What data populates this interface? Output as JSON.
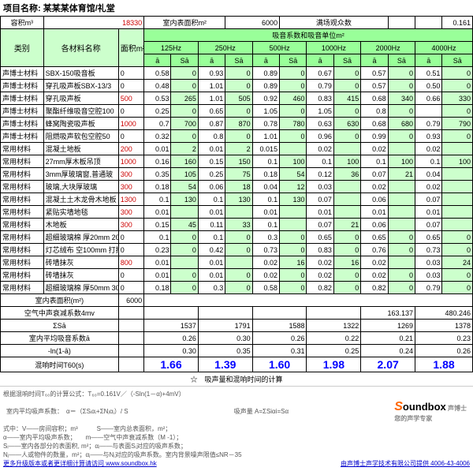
{
  "title": "项目名称: 某某某体育馆/礼堂",
  "top": {
    "volLabel": "容积m³",
    "vol": "18330",
    "areaLabel": "室内表面积m²",
    "area": "6000",
    "seatLabel": "满场观众数",
    "const": "0.161"
  },
  "hdr": {
    "cat": "类别",
    "mat": "各材料名称",
    "faceArea": "面积m²",
    "coeff": "吸音系数和吸音单位m²",
    "freqs": [
      "125Hz",
      "250Hz",
      "500Hz",
      "1000Hz",
      "2000Hz",
      "4000Hz"
    ],
    "sub1": "ā",
    "sub2": "Sā"
  },
  "rows": [
    {
      "c": "声博士材料",
      "m": "SBX-150吸音板",
      "a": "0",
      "v": [
        "0.58",
        "0",
        "0.93",
        "0",
        "0.89",
        "0",
        "0.67",
        "0",
        "0.57",
        "0",
        "0.51",
        "0"
      ]
    },
    {
      "c": "声博士材料",
      "m": "穿孔吸声板SBX-13/3",
      "a": "0",
      "v": [
        "0.48",
        "0",
        "1.01",
        "0",
        "0.89",
        "0",
        "0.79",
        "0",
        "0.57",
        "0",
        "0.50",
        "0"
      ]
    },
    {
      "c": "声博士材料",
      "m": "穿孔吸声板",
      "a": "500",
      "ar": 1,
      "v": [
        "0.53",
        "265",
        "1.01",
        "505",
        "0.92",
        "460",
        "0.83",
        "415",
        "0.68",
        "340",
        "0.66",
        "330"
      ]
    },
    {
      "c": "声博士材料",
      "m": "聚酯纤维吸音空腔100",
      "a": "0",
      "v": [
        "0.25",
        "0",
        "0.65",
        "0",
        "1.05",
        "0",
        "1.05",
        "0",
        "0.8",
        "0",
        "",
        "0"
      ]
    },
    {
      "c": "声博士材料",
      "m": "蜂窝陶瓷吸声板",
      "a": "1000",
      "ar": 1,
      "v": [
        "0.7",
        "700",
        "0.87",
        "870",
        "0.78",
        "780",
        "0.63",
        "630",
        "0.68",
        "680",
        "0.79",
        "790"
      ]
    },
    {
      "c": "声博士材料",
      "m": "阻燃吸声软包空腔50",
      "a": "0",
      "v": [
        "0.32",
        "0",
        "0.8",
        "0",
        "1.01",
        "0",
        "0.96",
        "0",
        "0.99",
        "0",
        "0.93",
        "0"
      ]
    },
    {
      "常用材料": "",
      "c": "常用材料",
      "m": "混凝土地板",
      "a": "200",
      "ar": 1,
      "v": [
        "0.01",
        "2",
        "0.01",
        "2",
        "0.015",
        "",
        "0.02",
        "",
        "0.02",
        "",
        "0.02",
        ""
      ]
    },
    {
      "c": "常用材料",
      "m": "27mm厚木板吊顶",
      "a": "1000",
      "ar": 1,
      "v": [
        "0.16",
        "160",
        "0.15",
        "150",
        "0.1",
        "100",
        "0.1",
        "100",
        "0.1",
        "100",
        "0.1",
        "100"
      ]
    },
    {
      "c": "常用材料",
      "m": "3mm厚玻璃窗,普通玻",
      "a": "300",
      "ar": 1,
      "v": [
        "0.35",
        "105",
        "0.25",
        "75",
        "0.18",
        "54",
        "0.12",
        "36",
        "0.07",
        "21",
        "0.04",
        ""
      ]
    },
    {
      "c": "常用材料",
      "m": "玻璃,大块厚玻璃",
      "a": "300",
      "ar": 1,
      "v": [
        "0.18",
        "54",
        "0.06",
        "18",
        "0.04",
        "12",
        "0.03",
        "",
        "0.02",
        "",
        "0.02",
        ""
      ]
    },
    {
      "c": "常用材料",
      "m": "混凝土土木龙骨木地板",
      "a": "1300",
      "ar": 1,
      "v": [
        "0.1",
        "130",
        "0.1",
        "130",
        "0.1",
        "130",
        "0.07",
        "",
        "0.06",
        "",
        "0.07",
        ""
      ]
    },
    {
      "c": "常用材料",
      "m": "紧贴实墙地毯",
      "a": "300",
      "ar": 1,
      "v": [
        "0.01",
        "",
        "0.01",
        "",
        "0.01",
        "",
        "0.01",
        "",
        "0.01",
        "",
        "0.01",
        ""
      ]
    },
    {
      "c": "常用材料",
      "m": "木地板",
      "a": "300",
      "ar": 1,
      "v": [
        "0.15",
        "45",
        "0.11",
        "33",
        "0.1",
        "",
        "0.07",
        "21",
        "0.06",
        "",
        "0.07",
        ""
      ]
    },
    {
      "c": "常用材料",
      "m": "超细玻璃棉 厚20mm 20K",
      "a": "0",
      "v": [
        "0.1",
        "0",
        "0.1",
        "0",
        "0.3",
        "0",
        "0.65",
        "0",
        "0.65",
        "0",
        "0.65",
        "0"
      ]
    },
    {
      "c": "常用材料",
      "m": "灯芯绒布 空100mm 打折",
      "a": "0",
      "v": [
        "0.23",
        "0",
        "0.42",
        "0",
        "0.73",
        "0",
        "0.83",
        "0",
        "0.76",
        "0",
        "0.73",
        "0"
      ]
    },
    {
      "c": "常用材料",
      "m": "砖墙抹灰",
      "a": "800",
      "ar": 1,
      "v": [
        "0.01",
        "",
        "0.01",
        "",
        "0.02",
        "16",
        "0.02",
        "16",
        "0.02",
        "",
        "0.03",
        "24"
      ]
    },
    {
      "c": "常用材料",
      "m": "砖墙抹灰",
      "a": "0",
      "v": [
        "0.01",
        "0",
        "0.01",
        "0",
        "0.02",
        "0",
        "0.02",
        "0",
        "0.02",
        "0",
        "0.03",
        "0"
      ]
    },
    {
      "c": "常用材料",
      "m": "超细玻璃棉 厚50mm 30K",
      "a": "0",
      "v": [
        "0.18",
        "0",
        "0.3",
        "0",
        "0.58",
        "0",
        "0.82",
        "0",
        "0.82",
        "0",
        "0.79",
        "0"
      ]
    }
  ],
  "sum": {
    "areaRow": {
      "l": "室内表面积(m²)",
      "v": "6000"
    },
    "airRow": {
      "l": "空气中声衰减系数4mv",
      "vals": [
        "",
        "",
        "",
        "",
        "163.137",
        "480.246"
      ]
    },
    "sigma": {
      "l": "ΣSā",
      "vals": [
        "1537",
        "1791",
        "1588",
        "1322",
        "1269",
        "1378"
      ]
    },
    "avg": {
      "l": "室内平均吸音系数ā",
      "vals": [
        "0.26",
        "0.30",
        "0.26",
        "0.22",
        "0.21",
        "0.23"
      ]
    },
    "ln": {
      "l": "-ln(1-ā)",
      "vals": [
        "0.30",
        "0.35",
        "0.31",
        "0.25",
        "0.24",
        "0.26"
      ]
    },
    "t60": {
      "l": "混响时间T60(s)",
      "vals": [
        "1.66",
        "1.39",
        "1.60",
        "1.98",
        "2.07",
        "1.88"
      ]
    }
  },
  "footer": {
    "divider": "☆　吸声量和混响时间的计算",
    "line1": "根据混响时间T₆₀的计算公式：T₆₀=0.161V／（-Sln(1－α)+4mV）",
    "line2a": "室内平均吸声系数：　α＝（ΣSᵢαᵢ+ΣNⱼαⱼ）/ S",
    "line2b": "吸声量 A=ΣSiαi=Sα",
    "line3": "式中：V——房间容积；m³　　　S——室内总表面积，m²；",
    "line4": "α——室内平均吸声系数；　　m——空气中声衰减系数（M -1）；",
    "line5": "Sᵢ——室内各部分的表面积, m²；αᵢ——与表面Sᵢ对应的吸声系数；",
    "line6": "Nⱼ——人或物件的数量，m²；αⱼ——与Nⱼ对应的吸声系数。室内背景噪声限值≤NR－35",
    "link1": "更多升级版本或者更详细计算请访问 www.soundbox.hk",
    "link2": "由声博士声学技术有限公司提供 4006-43-4006"
  }
}
